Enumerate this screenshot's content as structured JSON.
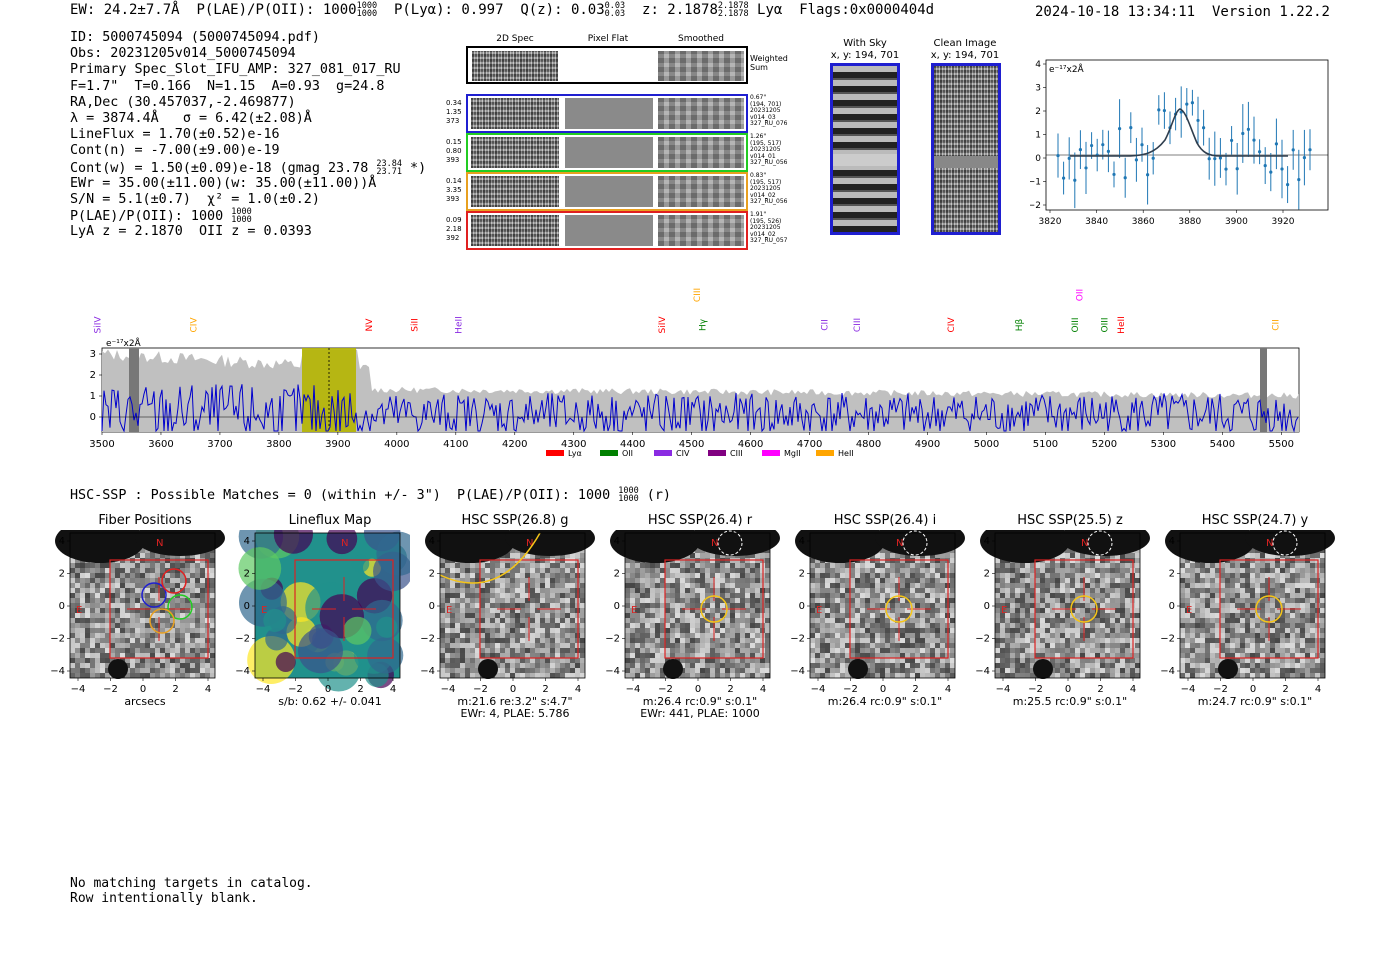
{
  "header": {
    "ew": "EW: 24.2±7.7Å",
    "plae": "P(LAE)/P(OII): 1000",
    "plae_hi": "1000",
    "plae_lo": "1000",
    "plya": "P(Lyα): 0.997",
    "qz": "Q(z): 0.03",
    "qz_hi": "0.03",
    "qz_lo": "0.03",
    "z": "z: 2.1878",
    "z_hi": "2.1878",
    "z_lo": "2.1878",
    "z_line": "Lyα",
    "flags": "Flags:0x0000404d",
    "datetime": "2024-10-18 13:34:11",
    "version": "Version 1.22.2"
  },
  "info": {
    "id": "ID: 5000745094 (5000745094.pdf)",
    "obs": "Obs: 20231205v014_5000745094",
    "primary": "Primary Spec_Slot_IFU_AMP: 327_081_017_RU",
    "fit": "F=1.7\"  T=0.166  N=1.15  A=0.93  g=24.8",
    "radec": "RA,Dec (30.457037,-2.469877)",
    "lambda": "λ = 3874.4Å   σ = 6.42(±2.08)Å",
    "lineflux": "LineFlux = 1.70(±0.52)e-16",
    "contn": "Cont(n) = -7.00(±9.00)e-19",
    "contw": "Cont(w) = 1.50(±0.09)e-18 (gmag 23.78",
    "contw_hi": "23.84",
    "contw_lo": "23.71",
    "contw_end": "*)",
    "ewr": "EWr = 35.00(±11.00)(w: 35.00(±11.00))Å",
    "sn": "S/N = 5.1(±0.7)  χ² = 1.0(±0.2)",
    "plae": "P(LAE)/P(OII): 1000",
    "plae_hi": "1000",
    "plae_lo": "1000",
    "z": "LyA z = 2.1870  OII z = 0.0393"
  },
  "cutouts": {
    "headers": [
      "2D Spec",
      "Pixel Flat",
      "Smoothed"
    ],
    "weighted": "Weighted Sum",
    "rows": [
      {
        "left": [
          "0.34",
          "1.35",
          "373"
        ],
        "right": [
          "0.67\"",
          "(194, 701)",
          "20231205",
          "v014_03",
          "327_RU_076"
        ],
        "color": "#1f1fd0"
      },
      {
        "left": [
          "0.15",
          "0.80",
          "393"
        ],
        "right": [
          "1.26\"",
          "(195, 517)",
          "20231205",
          "v014_01",
          "327_RU_056"
        ],
        "color": "#22cc22"
      },
      {
        "left": [
          "0.14",
          "3.35",
          "393"
        ],
        "right": [
          "0.83\"",
          "(195, 517)",
          "20231205",
          "v014_02",
          "327_RU_056"
        ],
        "color": "#e8a020"
      },
      {
        "left": [
          "0.09",
          "2.18",
          "392"
        ],
        "right": [
          "1.91\"",
          "(195, 526)",
          "20231205",
          "v014_02",
          "327_RU_057"
        ],
        "color": "#e02020"
      }
    ]
  },
  "sky": {
    "with_title": "With Sky",
    "with_xy": "x, y: 194, 701",
    "clean_title": "Clean Image",
    "clean_xy": "x, y: 194, 701"
  },
  "fit_plot": {
    "unit": "e⁻¹⁷x2Å",
    "x_ticks": [
      "3820",
      "3840",
      "3860",
      "3880",
      "3900",
      "3920"
    ],
    "y_ticks": [
      "4",
      "3",
      "2",
      "1",
      "0",
      "−1",
      "−2"
    ]
  },
  "spectrum": {
    "unit": "e⁻¹⁷x2Å",
    "x_ticks": [
      "3500",
      "3600",
      "3700",
      "3800",
      "3900",
      "4000",
      "4100",
      "4200",
      "4300",
      "4400",
      "4500",
      "4600",
      "4700",
      "4800",
      "4900",
      "5000",
      "5100",
      "5200",
      "5300",
      "5400",
      "5500"
    ],
    "y_ticks": [
      "3",
      "2",
      "1",
      "0"
    ],
    "lines": [
      {
        "label": "SiIV",
        "wave": 3492,
        "color": "#8a2be2",
        "row": 0
      },
      {
        "label": "CIV",
        "wave": 3655,
        "color": "#ffa500",
        "row": 0
      },
      {
        "label": "NV",
        "wave": 3953,
        "color": "#ff0000",
        "row": 0
      },
      {
        "label": "SiII",
        "wave": 4030,
        "color": "#ff0000",
        "row": 0
      },
      {
        "label": "HeII",
        "wave": 4105,
        "color": "#8a2be2",
        "row": 0
      },
      {
        "label": "SiIV",
        "wave": 4450,
        "color": "#ff0000",
        "row": 0
      },
      {
        "label": "CIII",
        "wave": 4509,
        "color": "#ffa500",
        "row": 2
      },
      {
        "label": "Hγ",
        "wave": 4510,
        "color": "#008000",
        "row": 0
      },
      {
        "label": "CII",
        "wave": 4725,
        "color": "#8a2be2",
        "row": 0
      },
      {
        "label": "CIII",
        "wave": 4780,
        "color": "#8a2be2",
        "row": 0
      },
      {
        "label": "CIV",
        "wave": 4940,
        "color": "#ff0000",
        "row": 0
      },
      {
        "label": "Hβ",
        "wave": 5055,
        "color": "#008000",
        "row": 0
      },
      {
        "label": "OIII",
        "wave": 5150,
        "color": "#008000",
        "row": 0
      },
      {
        "label": "OII",
        "wave": 5158,
        "color": "#ff00ff",
        "row": 2
      },
      {
        "label": "OIII",
        "wave": 5200,
        "color": "#008000",
        "row": 0
      },
      {
        "label": "HeII",
        "wave": 5228,
        "color": "#ff0000",
        "row": 0
      },
      {
        "label": "CII",
        "wave": 5490,
        "color": "#ffa500",
        "row": 0
      }
    ],
    "legend": [
      {
        "label": "Lyα",
        "color": "#ff0000"
      },
      {
        "label": "OII",
        "color": "#008000"
      },
      {
        "label": "CIV",
        "color": "#8a2be2"
      },
      {
        "label": "CIII",
        "color": "#800080"
      },
      {
        "label": "MgII",
        "color": "#ff00ff"
      },
      {
        "label": "HeII",
        "color": "#ffa500"
      }
    ]
  },
  "hsc": {
    "title": "HSC-SSP : Possible Matches = 0 (within +/- 3\")  P(LAE)/P(OII): 1000",
    "title_hi": "1000",
    "title_lo": "1000",
    "title_end": "(r)",
    "panels": [
      {
        "title": "Fiber Positions",
        "cap1": "arcsecs",
        "cap2": "",
        "cap3": ""
      },
      {
        "title": "Lineflux Map",
        "cap1": "s/b: 0.62 +/- 0.041",
        "cap2": "",
        "cap3": ""
      },
      {
        "title": "HSC SSP(26.8) g",
        "cap1": "m:21.6  re:3.2\"  s:4.7\"",
        "cap2": "EWr: 4, PLAE: 5.786",
        "cap3": ""
      },
      {
        "title": "HSC SSP(26.4) r",
        "cap1": "m:26.4 rc:0.9\"  s:0.1\"",
        "cap2": "EWr: 441, PLAE: 1000",
        "cap3": ""
      },
      {
        "title": "HSC SSP(26.4) i",
        "cap1": "m:26.4 rc:0.9\"  s:0.1\"",
        "cap2": "",
        "cap3": ""
      },
      {
        "title": "HSC SSP(25.5) z",
        "cap1": "m:25.5 rc:0.9\"  s:0.1\"",
        "cap2": "",
        "cap3": ""
      },
      {
        "title": "HSC SSP(24.7) y",
        "cap1": "m:24.7 rc:0.9\"  s:0.1\"",
        "cap2": "",
        "cap3": ""
      }
    ],
    "ticks": [
      "−4",
      "−2",
      "0",
      "2",
      "4"
    ],
    "n_label": "N",
    "e_label": "E"
  },
  "message": {
    "line1": "No matching targets in catalog.",
    "line2": "Row intentionally blank."
  }
}
